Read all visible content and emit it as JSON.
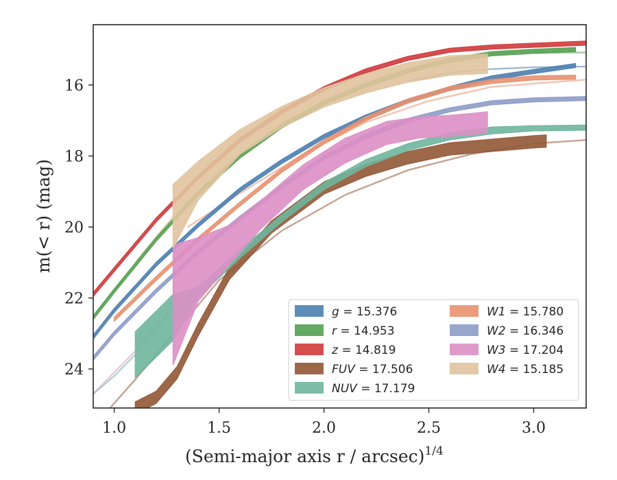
{
  "chart_data": {
    "type": "line",
    "xlabel": "(Semi-major axis r / arcsec)",
    "xlabel_sup": "1/4",
    "ylabel": "m(< r) (mag)",
    "xlim": [
      0.9,
      3.25
    ],
    "ylim": [
      25.1,
      14.3
    ],
    "y_inverted": true,
    "xticks": [
      1.0,
      1.5,
      2.0,
      2.5,
      3.0
    ],
    "xtick_labels": [
      "1.0",
      "1.5",
      "2.0",
      "2.5",
      "3.0"
    ],
    "yticks": [
      16,
      18,
      20,
      22,
      24
    ],
    "ytick_labels": [
      "16",
      "18",
      "20",
      "22",
      "24"
    ],
    "grid": false,
    "legend_placement": "lower-right",
    "legend_columns": 2,
    "series": [
      {
        "name": "g = 15.376",
        "band": "g",
        "mag": "15.376",
        "color": "#4c7fb0",
        "band_width": 0.12,
        "x": [
          0.9,
          1.0,
          1.2,
          1.4,
          1.6,
          1.8,
          2.0,
          2.2,
          2.4,
          2.6,
          2.8,
          3.0,
          3.2
        ],
        "y": [
          23.1,
          22.35,
          21.05,
          19.95,
          18.95,
          18.15,
          17.45,
          16.9,
          16.45,
          16.1,
          15.8,
          15.62,
          15.45
        ],
        "x_ext": [
          2.4,
          2.6,
          2.8,
          3.0,
          3.25
        ],
        "y_ext": [
          15.9,
          15.65,
          15.55,
          15.5,
          15.48
        ]
      },
      {
        "name": "r = 14.953",
        "band": "r",
        "mag": "14.953",
        "color": "#55a051",
        "band_width": 0.12,
        "x": [
          0.9,
          1.0,
          1.2,
          1.4,
          1.6,
          1.8,
          2.0,
          2.2,
          2.4,
          2.6,
          2.8,
          3.0,
          3.2
        ],
        "y": [
          22.55,
          21.8,
          20.35,
          19.05,
          18.0,
          17.15,
          16.5,
          16.0,
          15.6,
          15.3,
          15.12,
          15.05,
          15.0
        ],
        "x_ext": [
          3.0,
          3.25
        ],
        "y_ext": [
          15.1,
          15.08
        ]
      },
      {
        "name": "z = 14.819",
        "band": "z",
        "mag": "14.819",
        "color": "#cf3a3c",
        "band_width": 0.12,
        "x": [
          0.9,
          1.0,
          1.2,
          1.4,
          1.6,
          1.8,
          2.0,
          2.2,
          2.4,
          2.6,
          2.8,
          3.0,
          3.25
        ],
        "y": [
          21.9,
          21.2,
          19.8,
          18.6,
          17.55,
          16.75,
          16.1,
          15.6,
          15.25,
          15.02,
          14.93,
          14.88,
          14.82
        ],
        "x_ext": [],
        "y_ext": []
      },
      {
        "name": "FUV = 17.506",
        "band": "FUV",
        "mag": "17.506",
        "color": "#925836",
        "band_width": 0.35,
        "x": [
          1.1,
          1.2,
          1.3,
          1.4,
          1.55,
          1.75,
          2.0,
          2.2,
          2.4,
          2.6,
          2.8,
          3.0,
          3.06
        ],
        "y": [
          25.1,
          24.8,
          24.1,
          22.9,
          21.3,
          20.0,
          18.9,
          18.4,
          18.05,
          17.8,
          17.7,
          17.6,
          17.58
        ],
        "x_ext": [
          0.98,
          1.1,
          1.3,
          1.5,
          1.8,
          2.1,
          2.4,
          2.7,
          3.0,
          3.25
        ],
        "y_ext": [
          25.1,
          24.3,
          22.9,
          21.5,
          20.1,
          19.1,
          18.4,
          17.95,
          17.65,
          17.55
        ]
      },
      {
        "name": "NUV = 17.179",
        "band": "NUV",
        "mag": "17.179",
        "color": "#6fb59c",
        "band_width": 0.2,
        "x": [
          1.1,
          1.28,
          1.4,
          1.6,
          1.8,
          2.0,
          2.2,
          2.4,
          2.6,
          2.8,
          3.0,
          3.25
        ],
        "y": [
          23.6,
          22.55,
          21.85,
          20.75,
          19.75,
          18.85,
          18.2,
          17.75,
          17.45,
          17.28,
          17.22,
          17.2
        ],
        "band_widths": [
          1.3,
          1.3,
          0.3,
          0.25,
          0.2,
          0.2,
          0.2,
          0.2,
          0.2,
          0.2,
          0.15,
          0.15
        ],
        "x_ext": [
          0.9,
          1.0,
          1.1
        ],
        "y_ext": [
          24.7,
          24.2,
          23.6
        ]
      },
      {
        "name": "W1 = 15.780",
        "band": "W1",
        "mag": "15.780",
        "color": "#e8916f",
        "band_width": 0.12,
        "x": [
          1.0,
          1.2,
          1.4,
          1.6,
          1.8,
          2.0,
          2.2,
          2.4,
          2.6,
          2.8,
          3.0,
          3.2
        ],
        "y": [
          22.6,
          21.45,
          20.35,
          19.35,
          18.4,
          17.6,
          16.95,
          16.45,
          16.1,
          15.9,
          15.8,
          15.78
        ],
        "x_ext": [
          1.35,
          1.6,
          1.9,
          2.2,
          2.5,
          2.8,
          3.25
        ],
        "y_ext": [
          20.0,
          19.05,
          17.95,
          17.05,
          16.45,
          16.05,
          15.85
        ]
      },
      {
        "name": "W2 = 16.346",
        "band": "W2",
        "mag": "16.346",
        "color": "#8e9cc7",
        "band_width": 0.12,
        "x": [
          0.9,
          1.0,
          1.2,
          1.4,
          1.6,
          1.8,
          2.0,
          2.2,
          2.4,
          2.6,
          2.8,
          3.0,
          3.25
        ],
        "y": [
          23.7,
          23.0,
          21.8,
          20.7,
          19.75,
          18.85,
          18.05,
          17.45,
          17.0,
          16.7,
          16.5,
          16.42,
          16.38
        ],
        "x_ext": [],
        "y_ext": []
      },
      {
        "name": "W3 = 17.204",
        "band": "W3",
        "mag": "17.204",
        "color": "#dc8fc5",
        "band_width": 0.3,
        "x": [
          1.28,
          1.4,
          1.55,
          1.7,
          1.9,
          2.1,
          2.3,
          2.45,
          2.6,
          2.7,
          2.78
        ],
        "y": [
          22.2,
          21.2,
          20.5,
          19.65,
          18.6,
          17.85,
          17.35,
          17.2,
          17.15,
          17.1,
          17.05
        ],
        "band_widths": [
          3.4,
          1.8,
          1.1,
          0.8,
          0.7,
          0.7,
          0.65,
          0.6,
          0.6,
          0.6,
          0.6
        ],
        "x_ext": [
          0.9,
          1.0,
          1.1,
          1.28
        ],
        "y_ext": [
          24.7,
          24.1,
          23.5,
          22.3
        ]
      },
      {
        "name": "W4 = 15.185",
        "band": "W4",
        "mag": "15.185",
        "color": "#e0c39d",
        "band_width": 0.5,
        "x": [
          1.28,
          1.4,
          1.6,
          1.8,
          2.0,
          2.2,
          2.4,
          2.6,
          2.78
        ],
        "y": [
          19.7,
          18.7,
          17.6,
          16.9,
          16.35,
          15.95,
          15.65,
          15.45,
          15.4
        ],
        "band_widths": [
          1.8,
          1.1,
          0.7,
          0.6,
          0.55,
          0.55,
          0.55,
          0.55,
          0.55
        ],
        "x_ext": [
          1.1,
          1.28
        ],
        "y_ext": [
          21.0,
          19.7
        ]
      }
    ]
  }
}
